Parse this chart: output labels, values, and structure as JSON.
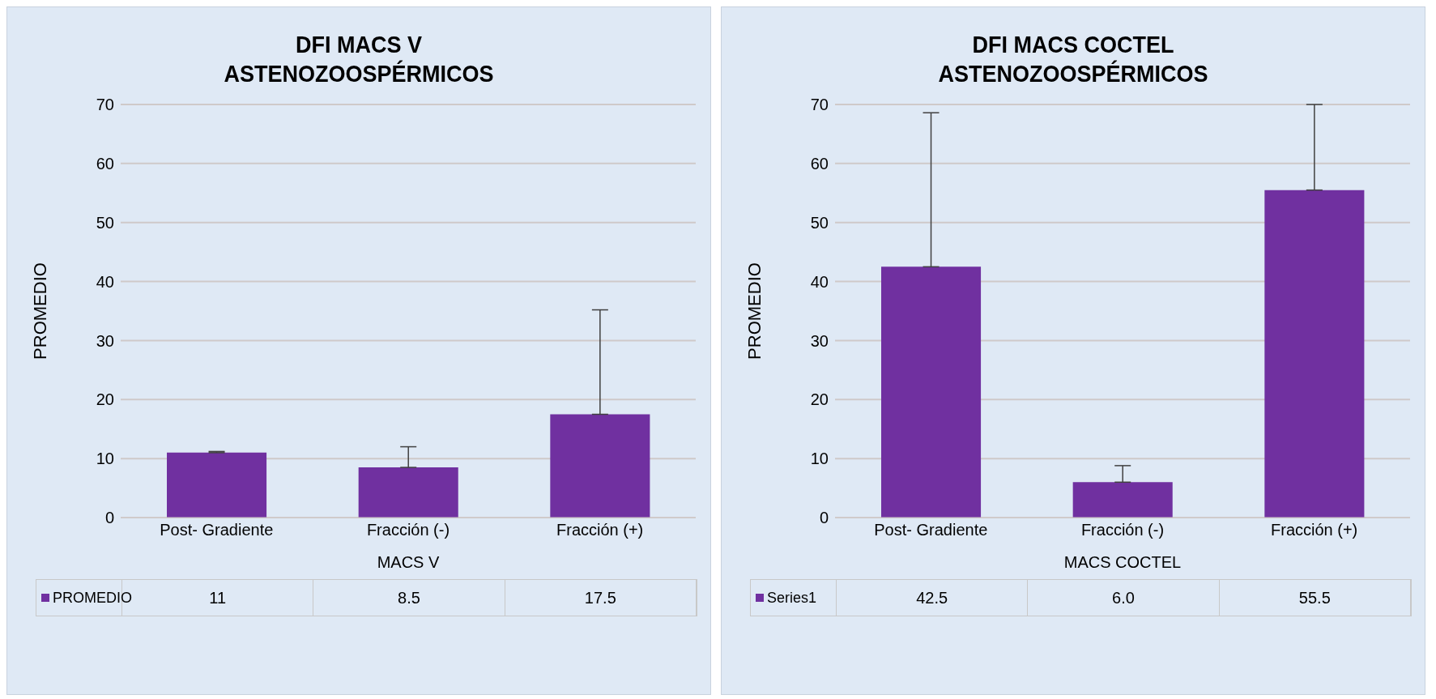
{
  "chart_data": [
    {
      "type": "bar",
      "title": "DFI MACS V\nASTENOZOOSPÉRMICOS",
      "xlabel": "MACS V",
      "ylabel": "PROMEDIO",
      "categories": [
        "Post- Gradiente",
        "Fracción (-)",
        "Fracción (+)"
      ],
      "series": [
        {
          "name": "PROMEDIO",
          "color": "#7030a0",
          "values": [
            11,
            8.5,
            17.5
          ],
          "errors": [
            [
              11,
              11.2
            ],
            [
              8.5,
              12
            ],
            [
              17.5,
              35.2
            ]
          ],
          "value_labels": [
            "11",
            "8.5",
            "17.5"
          ]
        }
      ],
      "ylim": [
        0,
        70
      ],
      "yticks": [
        0,
        10,
        20,
        30,
        40,
        50,
        60,
        70
      ],
      "grid": "y",
      "legend": "bottom"
    },
    {
      "type": "bar",
      "title": "DFI MACS COCTEL\nASTENOZOOSPÉRMICOS",
      "xlabel": "MACS COCTEL",
      "ylabel": "PROMEDIO",
      "categories": [
        "Post- Gradiente",
        "Fracción (-)",
        "Fracción (+)"
      ],
      "series": [
        {
          "name": "Series1",
          "color": "#7030a0",
          "values": [
            42.5,
            6.0,
            55.5
          ],
          "errors": [
            [
              42.5,
              68.6
            ],
            [
              6.0,
              8.8
            ],
            [
              55.5,
              70
            ]
          ],
          "value_labels": [
            "42.5",
            "6.0",
            "55.5"
          ]
        }
      ],
      "ylim": [
        0,
        70
      ],
      "yticks": [
        0,
        10,
        20,
        30,
        40,
        50,
        60,
        70
      ],
      "grid": "y",
      "legend": "bottom"
    }
  ]
}
